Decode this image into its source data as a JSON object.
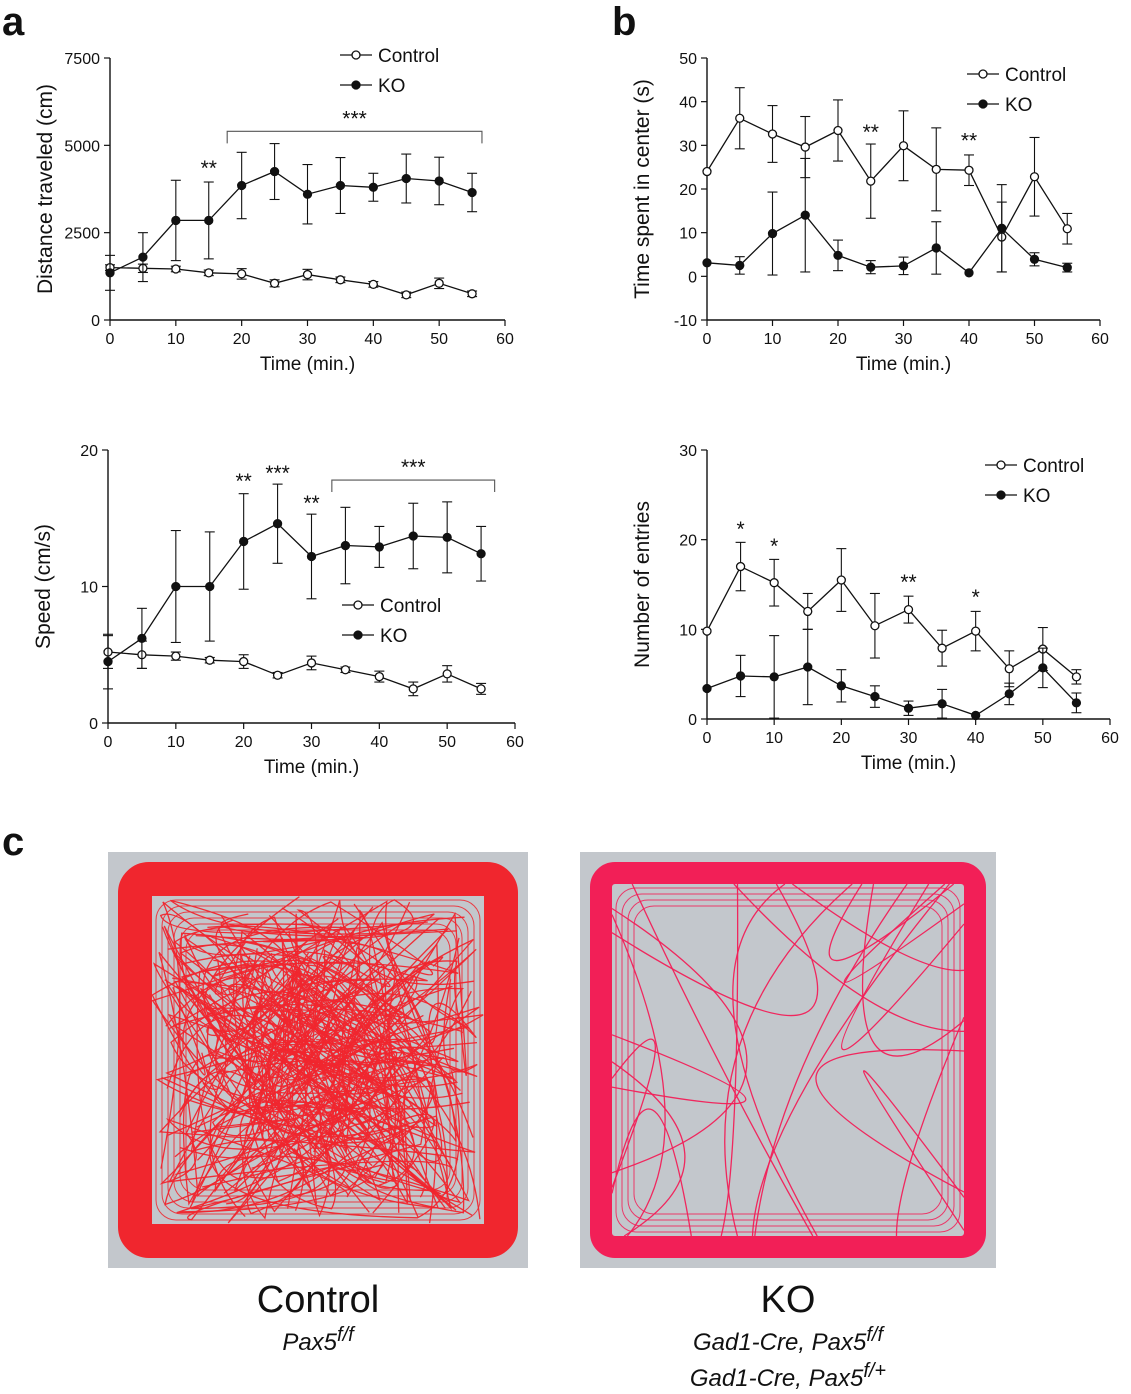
{
  "panels": {
    "a": "a",
    "b": "b",
    "c": "c"
  },
  "chart_data": [
    {
      "id": "distance",
      "type": "line",
      "title": "",
      "xlabel": "Time (min.)",
      "ylabel": "Distance traveled (cm)",
      "xlim": [
        0,
        60
      ],
      "ylim": [
        0,
        7500
      ],
      "xticks": [
        0,
        10,
        20,
        30,
        40,
        50,
        60
      ],
      "yticks": [
        0,
        2500,
        5000,
        7500
      ],
      "grid": false,
      "legend_position": "top-right",
      "x": [
        0,
        5,
        10,
        15,
        20,
        25,
        30,
        35,
        40,
        45,
        50,
        55
      ],
      "series": [
        {
          "name": "Control",
          "marker": "open",
          "color": "#111111",
          "values": [
            1500,
            1480,
            1460,
            1350,
            1320,
            1050,
            1300,
            1150,
            1020,
            720,
            1050,
            750
          ],
          "errors": [
            80,
            120,
            80,
            80,
            150,
            100,
            150,
            80,
            80,
            80,
            150,
            80
          ]
        },
        {
          "name": "KO",
          "marker": "filled",
          "color": "#111111",
          "values": [
            1350,
            1800,
            2850,
            2850,
            3850,
            4250,
            3600,
            3850,
            3800,
            4050,
            3980,
            3650
          ],
          "errors": [
            500,
            700,
            1150,
            1100,
            950,
            800,
            850,
            800,
            400,
            700,
            680,
            550
          ]
        }
      ],
      "annotations": [
        {
          "text": "**",
          "x": 15,
          "y": 4150
        },
        {
          "text": "***",
          "bracket": [
            17.8,
            56.5
          ],
          "y": 5400
        }
      ]
    },
    {
      "id": "speed",
      "type": "line",
      "title": "",
      "xlabel": "Time (min.)",
      "ylabel": "Speed (cm/s)",
      "xlim": [
        0,
        60
      ],
      "ylim": [
        0,
        20
      ],
      "xticks": [
        0,
        10,
        20,
        30,
        40,
        50,
        60
      ],
      "yticks": [
        0,
        10,
        20
      ],
      "grid": false,
      "legend_position": "center-right",
      "x": [
        0,
        5,
        10,
        15,
        20,
        25,
        30,
        35,
        40,
        45,
        50,
        55
      ],
      "series": [
        {
          "name": "Control",
          "marker": "open",
          "color": "#111111",
          "values": [
            5.2,
            5.0,
            4.9,
            4.6,
            4.5,
            3.5,
            4.4,
            3.9,
            3.4,
            2.5,
            3.6,
            2.5
          ],
          "errors": [
            1.2,
            1.0,
            0.3,
            0.2,
            0.5,
            0.2,
            0.5,
            0.2,
            0.4,
            0.5,
            0.6,
            0.4
          ]
        },
        {
          "name": "KO",
          "marker": "filled",
          "color": "#111111",
          "values": [
            4.5,
            6.2,
            10.0,
            10.0,
            13.3,
            14.6,
            12.2,
            13.0,
            12.9,
            13.7,
            13.6,
            12.4
          ],
          "errors": [
            2.0,
            2.2,
            4.1,
            4.0,
            3.5,
            2.9,
            3.1,
            2.8,
            1.5,
            2.4,
            2.6,
            2.0
          ]
        }
      ],
      "annotations": [
        {
          "text": "**",
          "x": 20,
          "y": 17.2
        },
        {
          "text": "***",
          "x": 25,
          "y": 17.8
        },
        {
          "text": "**",
          "x": 30,
          "y": 15.6
        },
        {
          "text": "***",
          "bracket": [
            33,
            57
          ],
          "y": 17.8
        }
      ]
    },
    {
      "id": "center-time",
      "type": "line",
      "title": "",
      "xlabel": "Time (min.)",
      "ylabel": "Time spent in center (s)",
      "xlim": [
        0,
        60
      ],
      "ylim": [
        -10,
        50
      ],
      "xticks": [
        0,
        10,
        20,
        30,
        40,
        50,
        60
      ],
      "yticks": [
        -10,
        0,
        10,
        20,
        30,
        40,
        50
      ],
      "grid": false,
      "legend_position": "top-right",
      "x": [
        0,
        5,
        10,
        15,
        20,
        25,
        30,
        35,
        40,
        45,
        50,
        55
      ],
      "series": [
        {
          "name": "Control",
          "marker": "open",
          "color": "#111111",
          "values": [
            24,
            36.2,
            32.6,
            29.6,
            33.4,
            21.8,
            29.9,
            24.5,
            24.3,
            9.0,
            22.8,
            10.9
          ],
          "errors": [
            0,
            7,
            6.5,
            7,
            7,
            8.5,
            8,
            9.5,
            3.5,
            8,
            9,
            3.5
          ]
        },
        {
          "name": "KO",
          "marker": "filled",
          "color": "#111111",
          "values": [
            3.1,
            2.5,
            9.8,
            14.0,
            4.8,
            2.1,
            2.4,
            6.5,
            0.8,
            11.0,
            3.9,
            2.0
          ],
          "errors": [
            0,
            2,
            9.5,
            13,
            3.5,
            1.5,
            2,
            6,
            0,
            10,
            1.5,
            1
          ]
        }
      ],
      "annotations": [
        {
          "text": "**",
          "x": 25,
          "y": 31.5
        },
        {
          "text": "**",
          "x": 40,
          "y": 29.5
        }
      ]
    },
    {
      "id": "entries",
      "type": "line",
      "title": "",
      "xlabel": "Time (min.)",
      "ylabel": "Number of entries",
      "xlim": [
        0,
        60
      ],
      "ylim": [
        0,
        30
      ],
      "xticks": [
        0,
        10,
        20,
        30,
        40,
        50,
        60
      ],
      "yticks": [
        0,
        10,
        20,
        30
      ],
      "grid": false,
      "legend_position": "top-right",
      "x": [
        0,
        5,
        10,
        15,
        20,
        25,
        30,
        35,
        40,
        45,
        50,
        55
      ],
      "series": [
        {
          "name": "Control",
          "marker": "open",
          "color": "#111111",
          "values": [
            9.8,
            17.0,
            15.2,
            12.0,
            15.5,
            10.4,
            12.2,
            7.9,
            9.8,
            5.6,
            7.8,
            4.7
          ],
          "errors": [
            0,
            2.7,
            2.6,
            2.0,
            3.5,
            3.6,
            1.5,
            2.0,
            2.2,
            2.0,
            2.4,
            0.8
          ]
        },
        {
          "name": "KO",
          "marker": "filled",
          "color": "#111111",
          "values": [
            3.4,
            4.8,
            4.7,
            5.8,
            3.7,
            2.5,
            1.2,
            1.7,
            0.4,
            2.8,
            5.7,
            1.8
          ],
          "errors": [
            0,
            2.3,
            4.6,
            4.2,
            1.8,
            1.2,
            0.8,
            1.6,
            0,
            1.2,
            2.2,
            1.1
          ]
        }
      ],
      "annotations": [
        {
          "text": "*",
          "x": 5,
          "y": 20.4
        },
        {
          "text": "*",
          "x": 10,
          "y": 18.5
        },
        {
          "text": "**",
          "x": 30,
          "y": 14.5
        },
        {
          "text": "*",
          "x": 40,
          "y": 12.8
        }
      ]
    }
  ],
  "arenas": [
    {
      "label": "Control",
      "genotype_base": "Pax5",
      "genotype_sup": "f/f",
      "track_color": "#f0262e",
      "paths": 90
    },
    {
      "label": "KO",
      "genotype_lines": [
        {
          "base": "Gad1-Cre, Pax5",
          "sup": "f/f"
        },
        {
          "base": "Gad1-Cre, Pax5",
          "sup": "f/+"
        }
      ],
      "track_color": "#f21f57",
      "paths": 22
    }
  ]
}
